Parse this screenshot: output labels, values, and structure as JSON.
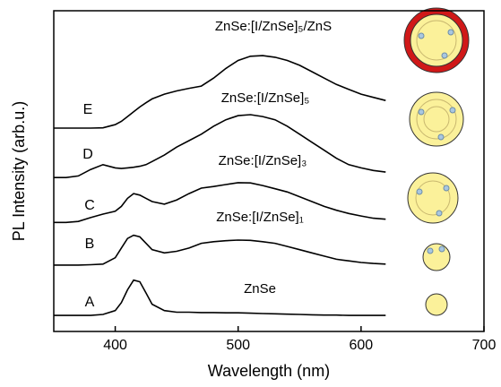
{
  "chart_data": {
    "type": "line",
    "x_label": "Wavelength (nm)",
    "y_label": "PL Intensity (arb.u.)",
    "xlim": [
      350,
      700
    ],
    "xticks": [
      400,
      500,
      600,
      700
    ],
    "ylim": [
      0,
      100
    ],
    "x": [
      350,
      360,
      370,
      380,
      390,
      400,
      405,
      410,
      415,
      420,
      425,
      430,
      440,
      450,
      460,
      470,
      480,
      490,
      500,
      510,
      520,
      530,
      540,
      550,
      560,
      570,
      580,
      590,
      600,
      610,
      620
    ],
    "series": [
      {
        "name": "A",
        "color": "#000000",
        "values": [
          5,
          5,
          5,
          5,
          5.3,
          6.5,
          9,
          13,
          16,
          15.5,
          12,
          8.5,
          6.5,
          6,
          6,
          5.9,
          5.9,
          5.8,
          5.8,
          5.7,
          5.6,
          5.5,
          5.4,
          5.3,
          5.2,
          5.1,
          5.1,
          5,
          5,
          5,
          5
        ]
      },
      {
        "name": "B",
        "color": "#000000",
        "values": [
          20.7,
          20.7,
          20.7,
          20.8,
          21,
          23,
          26,
          29,
          30,
          29.5,
          27.5,
          25.5,
          24.5,
          25,
          26,
          27.5,
          28,
          28.3,
          28.5,
          28.4,
          28,
          27.5,
          26.5,
          25.5,
          24.5,
          23.5,
          22.5,
          22,
          21.5,
          21.2,
          21
        ]
      },
      {
        "name": "C",
        "color": "#000000",
        "values": [
          34,
          34,
          34.3,
          35.5,
          36.6,
          37.5,
          39,
          41.5,
          43,
          42.5,
          41.5,
          40.5,
          39.7,
          41,
          43,
          44.7,
          45.2,
          45.8,
          46.4,
          46.3,
          45.5,
          44.5,
          43.5,
          42,
          40.5,
          39,
          37.8,
          36.8,
          36,
          35.3,
          35
        ]
      },
      {
        "name": "D",
        "color": "#000000",
        "values": [
          48,
          48,
          48.5,
          50.5,
          52,
          51,
          50.8,
          51,
          51.2,
          51.5,
          52,
          53,
          55,
          57.5,
          59.5,
          61.5,
          64,
          66,
          67.3,
          67.6,
          67,
          66,
          64,
          61.5,
          59,
          56.5,
          54,
          52,
          51,
          50.2,
          49.7
        ]
      },
      {
        "name": "E",
        "color": "#000000",
        "values": [
          63.4,
          63.4,
          63.4,
          63.4,
          63.5,
          64.5,
          65.5,
          67,
          68.5,
          70,
          71.3,
          72.5,
          74,
          75,
          75.8,
          76.5,
          79,
          82,
          84.5,
          85.8,
          86,
          85.5,
          84.5,
          83,
          81,
          79,
          77,
          75.5,
          74,
          73,
          72
        ]
      }
    ],
    "annotations": [
      "ZnSe",
      "ZnSe:[I/ZnSe]₁",
      "ZnSe:[I/ZnSe]₃",
      "ZnSe:[I/ZnSe]₅",
      "ZnSe:[I/ZnSe]₅/ZnS"
    ]
  }
}
